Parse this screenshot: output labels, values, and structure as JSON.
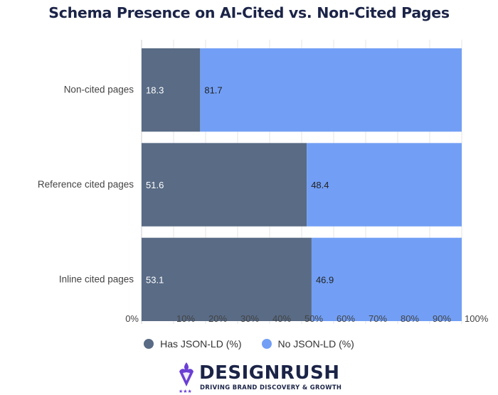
{
  "chart_data": {
    "type": "bar",
    "orientation": "horizontal",
    "stacked": true,
    "title": "Schema Presence on AI-Cited vs. Non-Cited Pages",
    "categories": [
      "Non-cited pages",
      "Reference cited pages",
      "Inline cited pages"
    ],
    "series": [
      {
        "name": "Has JSON-LD (%)",
        "values": [
          18.3,
          51.6,
          53.1
        ],
        "color": "#596b85"
      },
      {
        "name": "No JSON-LD (%)",
        "values": [
          81.7,
          48.4,
          46.9
        ],
        "color": "#729ff5"
      }
    ],
    "xlim": [
      0,
      100
    ],
    "xticks": [
      "0%",
      "10%",
      "20%",
      "30%",
      "40%",
      "50%",
      "60%",
      "70%",
      "80%",
      "90%",
      "100%"
    ],
    "grid": true,
    "legend_position": "bottom"
  },
  "brand": {
    "name": "DESIGNRUSH",
    "tagline": "DRIVING BRAND DISCOVERY & GROWTH",
    "color": "#1b2447",
    "accent": "#6b3fd4"
  }
}
